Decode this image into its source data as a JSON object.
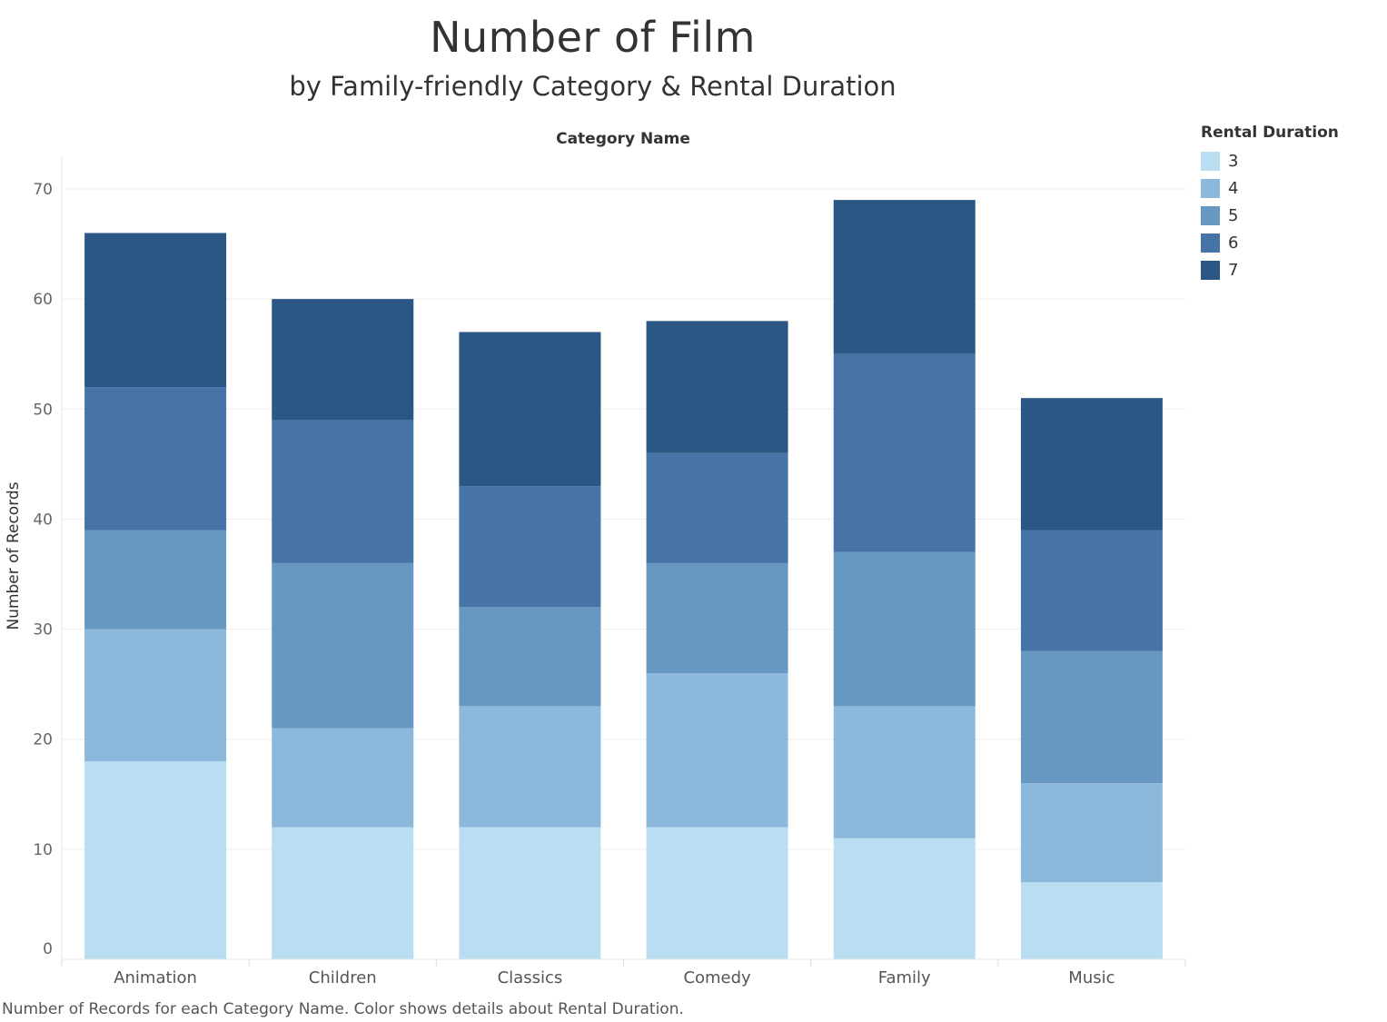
{
  "chart_data": {
    "type": "bar",
    "stacked": true,
    "title": "Number of Film",
    "subtitle": "by Family-friendly Category & Rental Duration",
    "xlabel": "Category Name",
    "ylabel": "Number of Records",
    "ylim": [
      0,
      72
    ],
    "yticks": [
      0,
      10,
      20,
      30,
      40,
      50,
      60,
      70
    ],
    "grid": true,
    "legend_title": "Rental Duration",
    "legend_position": "top-right",
    "categories": [
      "Animation",
      "Children",
      "Classics",
      "Comedy",
      "Family",
      "Music"
    ],
    "series": [
      {
        "name": "3",
        "color": "#b9ddf1",
        "values": [
          18,
          12,
          12,
          12,
          11,
          7
        ]
      },
      {
        "name": "4",
        "color": "#8cb8db",
        "values": [
          12,
          9,
          11,
          14,
          12,
          9
        ]
      },
      {
        "name": "5",
        "color": "#6798c2",
        "values": [
          9,
          15,
          9,
          10,
          14,
          12
        ]
      },
      {
        "name": "6",
        "color": "#4674a6",
        "values": [
          13,
          13,
          11,
          10,
          18,
          11
        ]
      },
      {
        "name": "7",
        "color": "#2a5783",
        "values": [
          14,
          11,
          14,
          12,
          14,
          12
        ]
      }
    ],
    "caption": "Number of Records for each Category Name.  Color shows details about Rental Duration."
  }
}
